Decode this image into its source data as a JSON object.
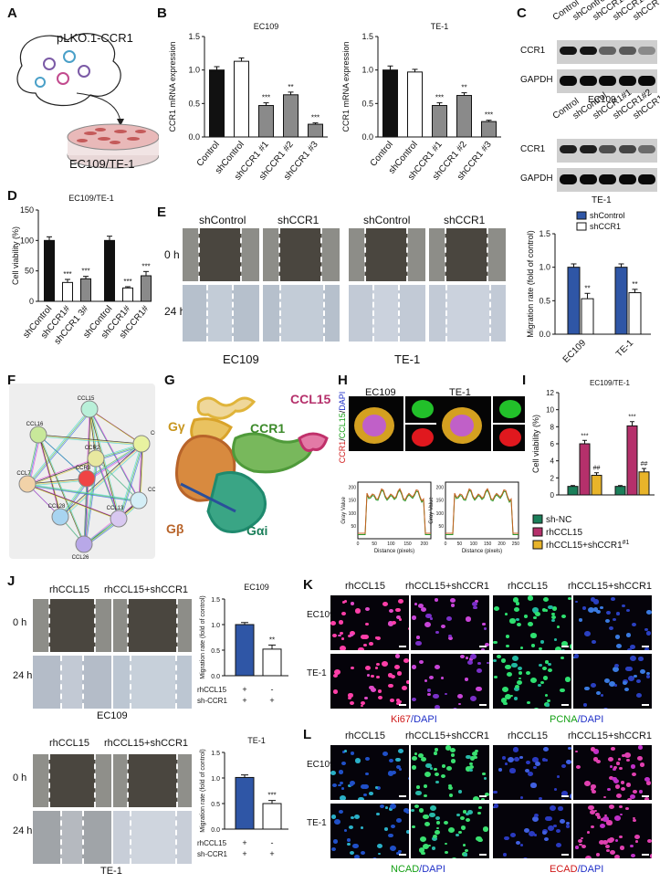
{
  "panels": {
    "A": "A",
    "B": "B",
    "C": "C",
    "D": "D",
    "E": "E",
    "F": "F",
    "G": "G",
    "H": "H",
    "I": "I",
    "J": "J",
    "K": "K",
    "L": "L"
  },
  "A": {
    "plasmid": "pLKO.1-CCR1",
    "cells": "EC109/TE-1"
  },
  "B": {
    "charts": [
      {
        "title": "EC109",
        "ylabel": "CCR1 mRNA expression",
        "categories": [
          "Control",
          "shControl",
          "shCCR1 #1",
          "shCCR1 #2",
          "shCCR1 #3"
        ],
        "values": [
          1.0,
          1.13,
          0.47,
          0.63,
          0.19
        ],
        "errors": [
          0.05,
          0.05,
          0.04,
          0.04,
          0.02
        ],
        "sig": [
          "",
          "",
          "***",
          "**",
          "***"
        ],
        "yticks": [
          "0.0",
          "0.5",
          "1.0",
          "1.5"
        ]
      },
      {
        "title": "TE-1",
        "ylabel": "CCR1 mRNA expression",
        "categories": [
          "Control",
          "shControl",
          "shCCR1 #1",
          "shCCR1 #2",
          "shCCR1 #3"
        ],
        "values": [
          1.0,
          0.97,
          0.47,
          0.62,
          0.23
        ],
        "errors": [
          0.06,
          0.04,
          0.04,
          0.04,
          0.02
        ],
        "sig": [
          "",
          "",
          "***",
          "**",
          "***"
        ],
        "yticks": [
          "0.0",
          "0.5",
          "1.0",
          "1.5"
        ]
      }
    ]
  },
  "C": {
    "lanes": [
      "Control",
      "shControl",
      "shCCR1#1",
      "shCCR1#2",
      "shCCR1#3"
    ],
    "proteins": [
      "CCR1",
      "GAPDH"
    ],
    "cells": [
      "EC109",
      "TE-1"
    ]
  },
  "D": {
    "title": "EC109/TE-1",
    "ylabel": "Cell viability (%)",
    "categories": [
      "shControl",
      "shCCR1#",
      "shCCR1 3#",
      "shControl",
      "shCCR1#",
      "shCCR1#"
    ],
    "values": [
      100,
      31,
      37,
      100,
      22,
      42
    ],
    "errors": [
      6,
      5,
      4,
      7,
      2,
      7
    ],
    "sig": [
      "",
      "***",
      "***",
      "",
      "***",
      "***"
    ],
    "yticks": [
      "0",
      "50",
      "100",
      "150"
    ]
  },
  "E": {
    "cols": [
      "shControl",
      "shCCR1",
      "shControl",
      "shCCR1"
    ],
    "rows": [
      "0 h",
      "24 h"
    ],
    "cells": [
      "EC109",
      "TE-1"
    ],
    "chart": {
      "ylabel": "Migration rate (fold of control)",
      "categories": [
        "EC109",
        "TE-1"
      ],
      "legend": [
        "shControl",
        "shCCR1"
      ],
      "series": [
        {
          "name": "shControl",
          "values": [
            1.0,
            1.0
          ]
        },
        {
          "name": "shCCR1",
          "values": [
            0.53,
            0.62
          ]
        }
      ],
      "errors": [
        [
          0.05,
          0.05
        ],
        [
          0.08,
          0.05
        ]
      ],
      "sig": [
        "**",
        "**"
      ],
      "yticks": [
        "0.0",
        "0.5",
        "1.0",
        "1.5"
      ]
    }
  },
  "F": {
    "nodes": [
      "CCL15",
      "CCL16",
      "CCR1",
      "CCR2",
      "CCR3",
      "CCL7",
      "CCL27",
      "CCL28",
      "CCL26",
      "CCL13"
    ]
  },
  "G": {
    "labels": [
      "Gγ",
      "CCR1",
      "CCL15",
      "Gβ",
      "Gαi"
    ]
  },
  "H": {
    "cells": [
      "EC109",
      "TE-1"
    ],
    "ylabel": "CCR1/CCL15/DAPI",
    "gray_ylabel": "Gray Value",
    "gray_xlabel": "Distance (pixels)",
    "yticks": [
      "50",
      "100",
      "150",
      "200"
    ],
    "xticks1": [
      "0",
      "50",
      "100",
      "150",
      "200"
    ],
    "xticks2": [
      "0",
      "50",
      "100",
      "150",
      "200",
      "250"
    ]
  },
  "I": {
    "title": "EC109/TE-1",
    "ylabel": "Cell viability (%)",
    "legend": [
      "sh-NC",
      "rhCCL15",
      "rhCCL15+shCCR1"
    ],
    "legend_sup": "#1",
    "groups": [
      {
        "values": [
          1.0,
          6.0,
          2.3
        ],
        "errors": [
          0.1,
          0.4,
          0.3
        ],
        "sig": [
          "",
          "***",
          "##"
        ]
      },
      {
        "values": [
          1.0,
          8.1,
          2.7
        ],
        "errors": [
          0.1,
          0.5,
          0.4
        ],
        "sig": [
          "",
          "***",
          "##"
        ]
      }
    ],
    "yticks": [
      "0",
      "2",
      "4",
      "6",
      "8",
      "10",
      "12"
    ]
  },
  "J": {
    "cols": [
      "rhCCL15",
      "rhCCL15+shCCR1"
    ],
    "rows": [
      "0 h",
      "24 h"
    ],
    "cells": [
      "EC109",
      "TE-1"
    ],
    "charts": [
      {
        "title": "EC109",
        "ylabel": "Migration rate (fold of control)",
        "values": [
          1.0,
          0.52
        ],
        "errors": [
          0.04,
          0.08
        ],
        "sig": "**",
        "yticks": [
          "0.0",
          "0.5",
          "1.0",
          "1.5"
        ]
      },
      {
        "title": "TE-1",
        "ylabel": "Migration rate (fold of control)",
        "values": [
          1.01,
          0.5
        ],
        "errors": [
          0.05,
          0.06
        ],
        "sig": "***",
        "yticks": [
          "0.0",
          "0.5",
          "1.0",
          "1.5"
        ]
      }
    ],
    "rows_table": [
      {
        "name": "rhCCL15",
        "v": [
          "+",
          "-"
        ]
      },
      {
        "name": "sh-CCR1",
        "v": [
          "+",
          "+"
        ]
      }
    ]
  },
  "K": {
    "cols": [
      "rhCCL15",
      "rhCCL15+shCCR1",
      "rhCCL15",
      "rhCCL15+shCCR1"
    ],
    "rows": [
      "EC109",
      "TE-1"
    ],
    "marker1": "Ki67",
    "marker2": "PCNA",
    "dapi": "/DAPI"
  },
  "L": {
    "cols": [
      "rhCCL15",
      "rhCCL15+shCCR1",
      "rhCCL15",
      "rhCCL15+shCCR1"
    ],
    "rows": [
      "EC109",
      "TE-1"
    ],
    "marker1": "NCAD",
    "marker2": "ECAD",
    "dapi": "/DAPI"
  },
  "colors": {
    "black": "#111111",
    "white": "#ffffff",
    "gray": "#8a8a8a",
    "blue": "#2f56a6",
    "green": "#1b7f5a",
    "magenta": "#b5306b",
    "yellow": "#e8b42a"
  }
}
